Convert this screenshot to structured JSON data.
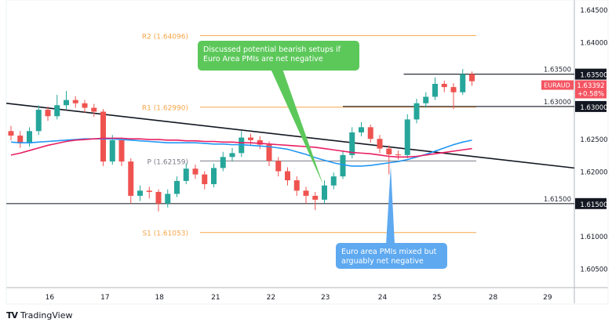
{
  "chart_data": {
    "type": "candlestick",
    "symbol": "EURAUD",
    "last_price": "1.63392",
    "change": "+0.58%",
    "ylim": [
      1.6025,
      1.6465
    ],
    "y_ticks": [
      "1.64500",
      "1.64000",
      "1.63500",
      "1.63000",
      "1.62500",
      "1.62000",
      "1.61500",
      "1.61000",
      "1.60500"
    ],
    "x_ticks": [
      {
        "label": "16",
        "index": 4.2
      },
      {
        "label": "17",
        "index": 10.2
      },
      {
        "label": "18",
        "index": 16.1
      },
      {
        "label": "21",
        "index": 22.2
      },
      {
        "label": "22",
        "index": 28.2
      },
      {
        "label": "23",
        "index": 34.1
      },
      {
        "label": "24",
        "index": 40.3
      },
      {
        "label": "25",
        "index": 46.2
      },
      {
        "label": "28",
        "index": 52.3
      },
      {
        "label": "29",
        "index": 58.2
      }
    ],
    "candles": [
      [
        1.6262,
        1.627,
        1.6248,
        1.6255
      ],
      [
        1.6255,
        1.6262,
        1.6236,
        1.6243
      ],
      [
        1.6243,
        1.6268,
        1.6238,
        1.6262
      ],
      [
        1.6262,
        1.6302,
        1.6256,
        1.6295
      ],
      [
        1.6295,
        1.63,
        1.6278,
        1.6285
      ],
      [
        1.6285,
        1.6318,
        1.628,
        1.6302
      ],
      [
        1.6302,
        1.6324,
        1.6296,
        1.631
      ],
      [
        1.631,
        1.6316,
        1.6298,
        1.6305
      ],
      [
        1.6305,
        1.631,
        1.629,
        1.6298
      ],
      [
        1.6298,
        1.6304,
        1.6284,
        1.6292
      ],
      [
        1.6292,
        1.6296,
        1.6208,
        1.6215
      ],
      [
        1.6215,
        1.6256,
        1.621,
        1.6248
      ],
      [
        1.6248,
        1.6252,
        1.6208,
        1.6215
      ],
      [
        1.6215,
        1.622,
        1.615,
        1.6162
      ],
      [
        1.6162,
        1.6178,
        1.6154,
        1.617
      ],
      [
        1.617,
        1.6176,
        1.6158,
        1.6168
      ],
      [
        1.6168,
        1.6172,
        1.6138,
        1.615
      ],
      [
        1.615,
        1.6172,
        1.6144,
        1.6165
      ],
      [
        1.6165,
        1.6192,
        1.616,
        1.6185
      ],
      [
        1.6185,
        1.6212,
        1.618,
        1.6204
      ],
      [
        1.6204,
        1.621,
        1.6188,
        1.6195
      ],
      [
        1.6195,
        1.62,
        1.6172,
        1.618
      ],
      [
        1.618,
        1.6212,
        1.6175,
        1.6205
      ],
      [
        1.6205,
        1.623,
        1.62,
        1.6222
      ],
      [
        1.6222,
        1.6236,
        1.6215,
        1.6228
      ],
      [
        1.6228,
        1.6262,
        1.6222,
        1.6252
      ],
      [
        1.6252,
        1.6258,
        1.624,
        1.6248
      ],
      [
        1.6248,
        1.6254,
        1.6234,
        1.6241
      ],
      [
        1.6241,
        1.6246,
        1.6208,
        1.6216
      ],
      [
        1.6216,
        1.6222,
        1.6192,
        1.62
      ],
      [
        1.62,
        1.6206,
        1.6178,
        1.6186
      ],
      [
        1.6186,
        1.6192,
        1.6162,
        1.617
      ],
      [
        1.617,
        1.6176,
        1.615,
        1.6162
      ],
      [
        1.6162,
        1.6168,
        1.614,
        1.6156
      ],
      [
        1.6156,
        1.6186,
        1.615,
        1.6178
      ],
      [
        1.6178,
        1.6198,
        1.6172,
        1.6192
      ],
      [
        1.6192,
        1.6232,
        1.6188,
        1.6225
      ],
      [
        1.6225,
        1.6268,
        1.622,
        1.626
      ],
      [
        1.626,
        1.6276,
        1.6254,
        1.6268
      ],
      [
        1.6268,
        1.6272,
        1.6244,
        1.625
      ],
      [
        1.625,
        1.6256,
        1.6228,
        1.6235
      ],
      [
        1.6235,
        1.624,
        1.6195,
        1.6226
      ],
      [
        1.6226,
        1.6232,
        1.6218,
        1.6225
      ],
      [
        1.6225,
        1.6288,
        1.622,
        1.628
      ],
      [
        1.628,
        1.6312,
        1.6274,
        1.6305
      ],
      [
        1.6305,
        1.6322,
        1.6298,
        1.6315
      ],
      [
        1.6315,
        1.6345,
        1.631,
        1.6335
      ],
      [
        1.6335,
        1.634,
        1.6322,
        1.633
      ],
      [
        1.633,
        1.6336,
        1.6296,
        1.6322
      ],
      [
        1.6322,
        1.6358,
        1.6318,
        1.635
      ],
      [
        1.635,
        1.6354,
        1.6332,
        1.6339
      ]
    ],
    "ma_blue": [
      1.6245,
      1.6244,
      1.6244,
      1.6245,
      1.6246,
      1.6247,
      1.6248,
      1.6249,
      1.625,
      1.625,
      1.625,
      1.625,
      1.6249,
      1.6248,
      1.6247,
      1.6246,
      1.6245,
      1.6244,
      1.6244,
      1.6244,
      1.6244,
      1.6243,
      1.6242,
      1.6242,
      1.6241,
      1.6241,
      1.624,
      1.6239,
      1.6238,
      1.6236,
      1.6234,
      1.623,
      1.6226,
      1.6221,
      1.6217,
      1.6213,
      1.621,
      1.6208,
      1.6208,
      1.6209,
      1.6211,
      1.6213,
      1.6215,
      1.6218,
      1.6222,
      1.6226,
      1.6231,
      1.6236,
      1.6241,
      1.6245,
      1.6248
    ],
    "ma_pink": [
      1.6225,
      1.6228,
      1.6232,
      1.6236,
      1.624,
      1.6243,
      1.6246,
      1.6248,
      1.6249,
      1.625,
      1.6251,
      1.6251,
      1.6251,
      1.625,
      1.625,
      1.6249,
      1.6249,
      1.6248,
      1.6248,
      1.6247,
      1.6247,
      1.6246,
      1.6246,
      1.6245,
      1.6245,
      1.6244,
      1.6244,
      1.6243,
      1.6242,
      1.6241,
      1.624,
      1.6239,
      1.6238,
      1.6237,
      1.6235,
      1.6233,
      1.6231,
      1.6229,
      1.6228,
      1.6227,
      1.6225,
      1.6223,
      1.6222,
      1.6222,
      1.6223,
      1.6225,
      1.6227,
      1.6229,
      1.6231,
      1.6233,
      1.6235
    ],
    "trendline": {
      "from": {
        "index": -0.5,
        "price": 1.6305
      },
      "to": {
        "index": 61.1,
        "price": 1.6205
      }
    },
    "horizontal_levels": [
      {
        "price": 1.635,
        "label": "1.63500",
        "from_index": 42.6
      },
      {
        "price": 1.63,
        "label": "1.63000",
        "from_index": 36
      },
      {
        "price": 1.615,
        "label": "1.61500",
        "from_index": -0.5
      }
    ],
    "pivots": [
      {
        "label": "R2 (1.64096)",
        "price": 1.64096,
        "color": "#f7a54a"
      },
      {
        "label": "R1 (1.62990)",
        "price": 1.6299,
        "color": "#f7a54a"
      },
      {
        "label": "P (1.62159)",
        "price": 1.62159,
        "color": "#787b86"
      },
      {
        "label": "S1 (1.61053)",
        "price": 1.61053,
        "color": "#f7a54a"
      }
    ],
    "annotations": [
      {
        "text": "Discussed potential bearish setups if Euro Area PMIs are net negative",
        "color": "#5cc85a"
      },
      {
        "text": "Euro area PMIs mixed but arguably net negative",
        "color": "#5ea9f0"
      }
    ],
    "colors": {
      "up": "#26a69a",
      "down": "#ef5350",
      "ma_blue": "#2196f3",
      "ma_pink": "#e91e63",
      "symbol_badge": "#f23645"
    }
  },
  "footer": {
    "brand": "TradingView"
  }
}
